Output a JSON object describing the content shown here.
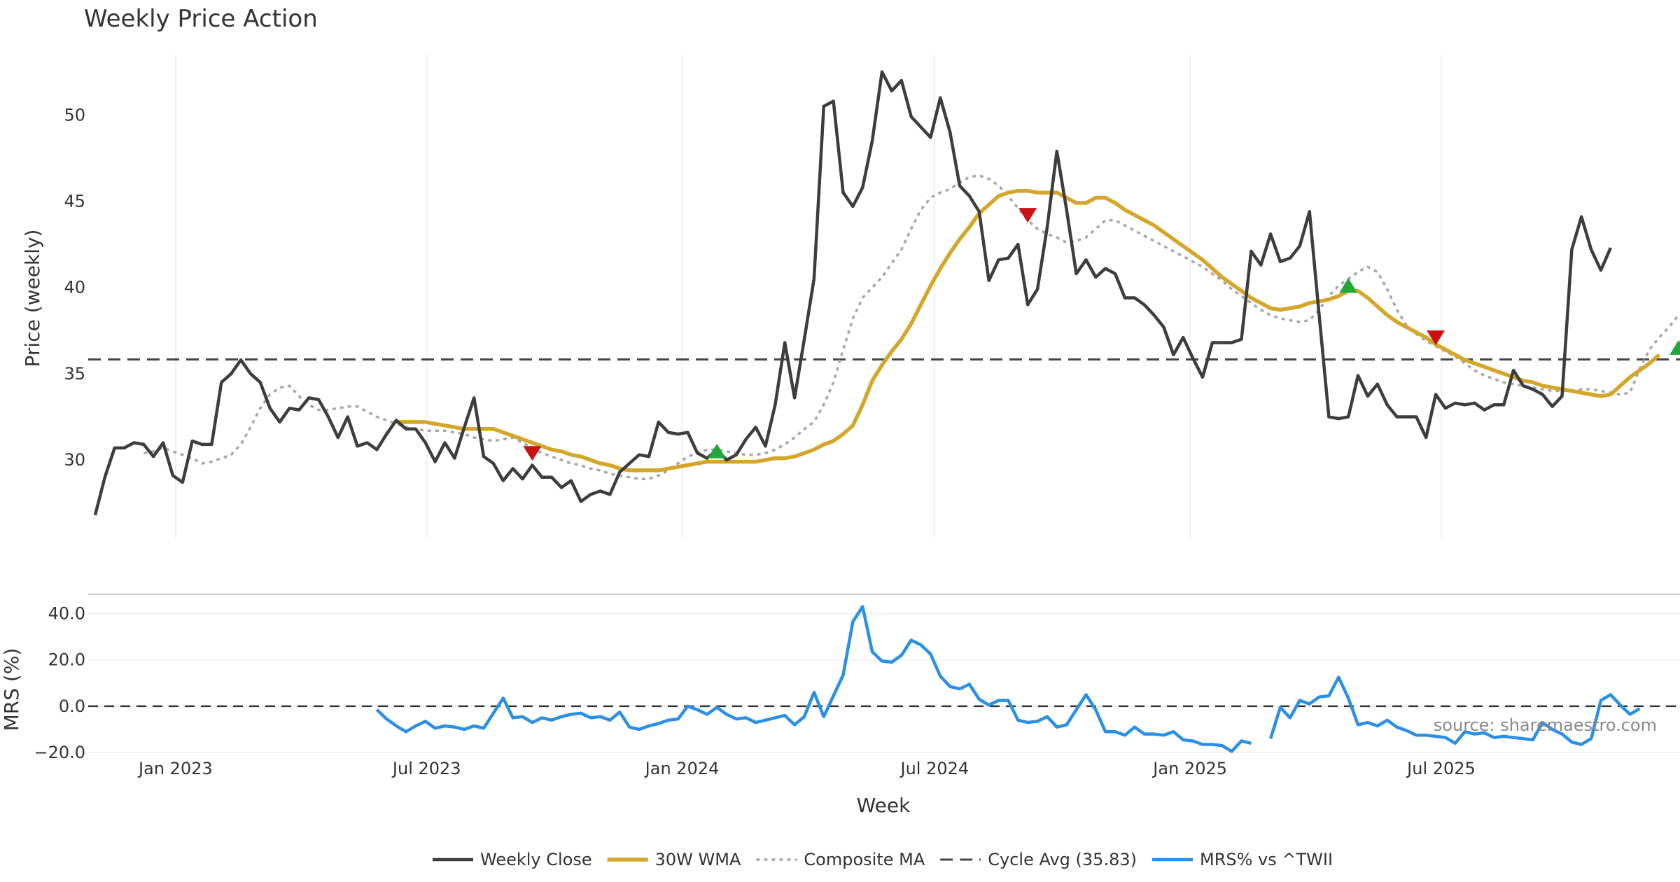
{
  "colors": {
    "close": "#3d3d3d",
    "wma": "#d4a62a",
    "composite": "#a8a8a8",
    "cycle": "#444444",
    "mrs": "#2b8fe6",
    "buy": "#22a83a",
    "sell": "#cc1111",
    "grid": "#ececec"
  },
  "chart_data": [
    {
      "type": "line",
      "title": "Weekly Price Action",
      "xlabel": "",
      "ylabel": "Price (weekly)",
      "ylim": [
        25.5,
        53.5
      ],
      "yticks": [
        30,
        35,
        40,
        45,
        50
      ],
      "x_start": "2022-11-04",
      "x_range": [
        "2022-10-30",
        "2025-12-20"
      ],
      "xtick_dates": [
        "2023-01-01",
        "2023-07-01",
        "2024-01-01",
        "2024-07-01",
        "2025-01-01",
        "2025-07-01"
      ],
      "grid": true,
      "cycle_avg": 35.83,
      "series": [
        {
          "name": "Weekly Close",
          "values": [
            26.8,
            29.0,
            30.7,
            30.7,
            31.0,
            30.9,
            30.2,
            31.0,
            29.1,
            28.7,
            31.1,
            30.9,
            30.9,
            34.5,
            35.0,
            35.8,
            35.0,
            34.5,
            33.0,
            32.2,
            33.0,
            32.9,
            33.6,
            33.5,
            32.5,
            31.3,
            32.5,
            30.8,
            31.0,
            30.6,
            31.5,
            32.3,
            31.8,
            31.8,
            31.0,
            29.9,
            31.0,
            30.1,
            31.9,
            33.6,
            30.2,
            29.8,
            28.8,
            29.5,
            28.9,
            29.7,
            29.0,
            29.0,
            28.4,
            28.8,
            27.6,
            28.0,
            28.2,
            28.0,
            29.3,
            29.8,
            30.3,
            30.2,
            32.2,
            31.6,
            31.5,
            31.6,
            30.4,
            30.1,
            30.6,
            30.0,
            30.3,
            31.2,
            31.9,
            30.8,
            33.2,
            36.8,
            33.6,
            37.0,
            40.5,
            50.5,
            50.8,
            45.5,
            44.7,
            45.8,
            48.5,
            52.5,
            51.4,
            52.0,
            49.9,
            49.3,
            48.7,
            51.0,
            49.0,
            45.9,
            45.3,
            44.4,
            40.4,
            41.6,
            41.7,
            42.5,
            39.0,
            39.9,
            43.5,
            47.9,
            44.5,
            40.8,
            41.6,
            40.6,
            41.1,
            40.8,
            39.4,
            39.4,
            39.0,
            38.4,
            37.7,
            36.1,
            37.1,
            35.9,
            34.8,
            36.8,
            36.8,
            36.8,
            37.0,
            42.1,
            41.3,
            43.1,
            41.5,
            41.7,
            42.4,
            44.4,
            38.4,
            32.5,
            32.4,
            32.5,
            34.9,
            33.7,
            34.4,
            33.2,
            32.5,
            32.5,
            32.5,
            31.3,
            33.8,
            33.0,
            33.3,
            33.2,
            33.3,
            32.9,
            33.2,
            33.2,
            35.2,
            34.3,
            34.1,
            33.8,
            33.1,
            33.7,
            42.2,
            44.1,
            42.2,
            41.0,
            42.3
          ]
        },
        {
          "name": "30W WMA",
          "start_index": 31,
          "values": [
            32.2,
            32.2,
            32.2,
            32.2,
            32.1,
            32.0,
            31.9,
            31.8,
            31.8,
            31.8,
            31.8,
            31.6,
            31.4,
            31.2,
            31.0,
            30.8,
            30.6,
            30.5,
            30.3,
            30.2,
            30.0,
            29.8,
            29.7,
            29.5,
            29.4,
            29.4,
            29.4,
            29.4,
            29.5,
            29.6,
            29.7,
            29.8,
            29.9,
            29.9,
            29.9,
            29.9,
            29.9,
            29.9,
            30.0,
            30.1,
            30.1,
            30.2,
            30.4,
            30.6,
            30.9,
            31.1,
            31.5,
            32.0,
            33.2,
            34.6,
            35.5,
            36.3,
            37.0,
            37.9,
            39.0,
            40.1,
            41.1,
            42.0,
            42.8,
            43.5,
            44.3,
            44.8,
            45.3,
            45.5,
            45.6,
            45.6,
            45.5,
            45.5,
            45.5,
            45.2,
            44.9,
            44.9,
            45.2,
            45.2,
            44.9,
            44.5,
            44.2,
            43.9,
            43.6,
            43.2,
            42.8,
            42.4,
            42.0,
            41.6,
            41.1,
            40.6,
            40.2,
            39.8,
            39.4,
            39.1,
            38.8,
            38.7,
            38.8,
            38.9,
            39.1,
            39.2,
            39.3,
            39.5,
            39.8,
            39.8,
            39.4,
            38.9,
            38.4,
            38.0,
            37.7,
            37.4,
            37.1,
            36.7,
            36.4,
            36.1,
            35.8,
            35.6,
            35.4,
            35.2,
            35.0,
            34.8,
            34.6,
            34.5,
            34.3,
            34.2,
            34.1,
            34.0,
            33.9,
            33.8,
            33.7,
            33.8,
            34.3,
            34.8,
            35.2,
            35.6,
            36.1
          ]
        },
        {
          "name": "Composite MA",
          "start_index": 5,
          "values": [
            30.4,
            30.5,
            30.7,
            30.5,
            30.3,
            30.1,
            29.8,
            29.9,
            30.1,
            30.3,
            30.9,
            31.9,
            33.0,
            33.8,
            34.2,
            34.3,
            33.7,
            33.2,
            32.9,
            32.9,
            33.0,
            33.1,
            33.1,
            32.8,
            32.5,
            32.3,
            32.1,
            31.9,
            31.8,
            31.7,
            31.7,
            31.7,
            31.6,
            31.5,
            31.3,
            31.2,
            31.1,
            31.2,
            31.3,
            31.0,
            30.7,
            30.4,
            30.2,
            30.0,
            29.8,
            29.7,
            29.5,
            29.4,
            29.2,
            29.1,
            29.0,
            28.9,
            28.9,
            29.1,
            29.4,
            29.8,
            30.2,
            30.4,
            30.6,
            30.6,
            30.5,
            30.4,
            30.3,
            30.3,
            30.4,
            30.6,
            30.9,
            31.3,
            31.8,
            32.2,
            33.2,
            34.5,
            36.4,
            38.2,
            39.4,
            40.0,
            40.6,
            41.4,
            42.2,
            43.4,
            44.5,
            45.2,
            45.5,
            45.7,
            46.1,
            46.4,
            46.5,
            46.3,
            45.9,
            45.3,
            44.6,
            43.9,
            43.4,
            43.1,
            42.9,
            42.6,
            42.7,
            42.9,
            43.4,
            43.9,
            43.9,
            43.6,
            43.3,
            43.0,
            42.7,
            42.4,
            42.1,
            41.8,
            41.5,
            41.2,
            40.8,
            40.4,
            39.9,
            39.5,
            39.1,
            38.7,
            38.4,
            38.2,
            38.1,
            38.0,
            38.1,
            38.7,
            39.5,
            40.1,
            40.5,
            40.9,
            41.2,
            40.9,
            39.9,
            38.7,
            37.8,
            37.3,
            36.9,
            36.6,
            36.3,
            36.0,
            35.6,
            35.2,
            34.9,
            34.7,
            34.5,
            34.4,
            34.3,
            34.2,
            34.1,
            34.0,
            34.0,
            34.0,
            34.1,
            34.1,
            34.0,
            33.9,
            33.8,
            33.9,
            35.3,
            36.4,
            37.1,
            37.7,
            38.4
          ]
        }
      ],
      "signals": [
        {
          "type": "sell",
          "index": 45,
          "value": 30.4
        },
        {
          "type": "buy",
          "index": 64,
          "value": 30.5
        },
        {
          "type": "sell",
          "index": 96,
          "value": 44.2
        },
        {
          "type": "buy",
          "index": 129,
          "value": 40.1
        },
        {
          "type": "sell",
          "index": 138,
          "value": 37.1
        },
        {
          "type": "buy",
          "index": 163,
          "value": 36.5
        }
      ]
    },
    {
      "type": "line",
      "title": "",
      "xlabel": "Week",
      "ylabel": "MRS (%)",
      "ylim": [
        -23,
        45
      ],
      "yticks": [
        -20.0,
        0.0,
        20.0,
        40.0
      ],
      "zero_line": 0.0,
      "series": [
        {
          "name": "MRS% vs ^TWII",
          "start_index": 29,
          "values": [
            -1.5,
            -5.5,
            -8.5,
            -11.0,
            -8.5,
            -6.5,
            -9.5,
            -8.5,
            -9.0,
            -10.0,
            -8.5,
            -9.5,
            -3.0,
            3.5,
            -5.0,
            -4.5,
            -7.0,
            -5.0,
            -6.0,
            -4.5,
            -3.5,
            -3.0,
            -5.0,
            -4.5,
            -6.0,
            -2.5,
            -9.0,
            -10.0,
            -8.5,
            -7.5,
            -6.0,
            -5.5,
            0.0,
            -1.5,
            -3.5,
            -0.5,
            -3.5,
            -5.5,
            -5.0,
            -7.0,
            -6.0,
            -5.0,
            -4.0,
            -8.0,
            -4.5,
            6.0,
            -4.5,
            4.5,
            13.5,
            36.5,
            43.0,
            23.5,
            19.5,
            19.0,
            22.0,
            28.5,
            26.5,
            22.5,
            13.0,
            8.5,
            7.5,
            9.5,
            3.0,
            0.5,
            2.5,
            2.5,
            -6.0,
            -7.0,
            -6.5,
            -4.5,
            -9.0,
            -8.0,
            -1.5,
            5.0,
            -1.5,
            -11.0,
            -11.0,
            -12.5,
            -9.0,
            -12.0,
            -12.0,
            -12.5,
            -11.0,
            -14.5,
            -15.0,
            -16.5,
            -16.5,
            -17.0,
            -19.5,
            -15.0,
            -16.0,
            null,
            -14.0,
            -0.5,
            -5.0,
            2.5,
            1.0,
            4.0,
            4.5,
            12.5,
            3.5,
            -8.0,
            -7.0,
            -8.5,
            -6.0,
            -9.0,
            -10.5,
            -12.5,
            -12.5,
            -13.0,
            -13.5,
            -16.0,
            -11.0,
            -12.0,
            -11.5,
            -13.5,
            -13.0,
            -13.5,
            -14.0,
            -14.5,
            -7.0,
            -10.0,
            -12.0,
            -15.5,
            -16.5,
            -14.0,
            2.5,
            5.0,
            0.5,
            -3.5,
            -1.0
          ]
        }
      ],
      "annotation": "source: sharemaestro.com",
      "xtick_labels": [
        "Jan 2023",
        "Jul 2023",
        "Jan 2024",
        "Jul 2024",
        "Jan 2025",
        "Jul 2025"
      ]
    }
  ],
  "legend": [
    {
      "key": "close",
      "label": "Weekly Close"
    },
    {
      "key": "wma",
      "label": "30W WMA"
    },
    {
      "key": "composite",
      "label": "Composite MA"
    },
    {
      "key": "cycle",
      "label": "Cycle Avg (35.83)"
    },
    {
      "key": "mrs",
      "label": "MRS% vs ^TWII"
    }
  ]
}
